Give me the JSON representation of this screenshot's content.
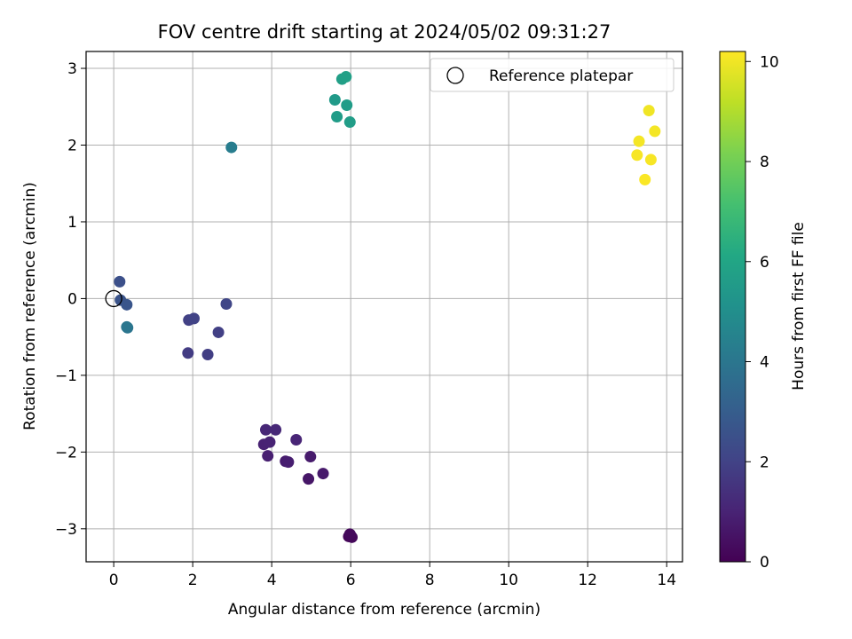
{
  "chart_data": {
    "type": "scatter",
    "title": "FOV centre drift starting at 2024/05/02 09:31:27",
    "xlabel": "Angular distance from reference (arcmin)",
    "ylabel": "Rotation from reference (arcmin)",
    "xlim": [
      -0.7,
      14.4
    ],
    "ylim": [
      -3.43,
      3.22
    ],
    "xticks": [
      0,
      2,
      4,
      6,
      8,
      10,
      12,
      14
    ],
    "yticks": [
      -3,
      -2,
      -1,
      0,
      1,
      2,
      3
    ],
    "xtick_labels": [
      "0",
      "2",
      "4",
      "6",
      "8",
      "10",
      "12",
      "14"
    ],
    "ytick_labels": [
      "−3",
      "−2",
      "−1",
      "0",
      "1",
      "2",
      "3"
    ],
    "grid": true,
    "colormap": "viridis",
    "colorbar": {
      "label": "Hours from first FF file",
      "range": [
        0,
        10.2
      ],
      "ticks": [
        0,
        2,
        4,
        6,
        8,
        10
      ],
      "tick_labels": [
        "0",
        "2",
        "4",
        "6",
        "8",
        "10"
      ]
    },
    "legend": {
      "position": "top-right",
      "entries": [
        {
          "label": "Reference platepar",
          "marker": "open-circle"
        }
      ]
    },
    "reference_point": {
      "x": 0,
      "y": 0
    },
    "points": [
      {
        "x": 6.0,
        "y": -3.09,
        "hours": 0.1
      },
      {
        "x": 5.95,
        "y": -3.1,
        "hours": 0.15
      },
      {
        "x": 6.03,
        "y": -3.11,
        "hours": 0.2
      },
      {
        "x": 5.98,
        "y": -3.07,
        "hours": 0.25
      },
      {
        "x": 4.93,
        "y": -2.35,
        "hours": 0.6
      },
      {
        "x": 5.3,
        "y": -2.28,
        "hours": 0.7
      },
      {
        "x": 4.98,
        "y": -2.06,
        "hours": 0.75
      },
      {
        "x": 4.35,
        "y": -2.12,
        "hours": 0.8
      },
      {
        "x": 4.42,
        "y": -2.13,
        "hours": 0.85
      },
      {
        "x": 3.9,
        "y": -2.05,
        "hours": 0.9
      },
      {
        "x": 3.8,
        "y": -1.9,
        "hours": 0.95
      },
      {
        "x": 3.95,
        "y": -1.87,
        "hours": 1.0
      },
      {
        "x": 4.62,
        "y": -1.84,
        "hours": 1.05
      },
      {
        "x": 3.85,
        "y": -1.71,
        "hours": 1.1
      },
      {
        "x": 4.1,
        "y": -1.71,
        "hours": 1.15
      },
      {
        "x": 1.88,
        "y": -0.71,
        "hours": 1.8
      },
      {
        "x": 2.38,
        "y": -0.73,
        "hours": 1.85
      },
      {
        "x": 2.65,
        "y": -0.44,
        "hours": 1.9
      },
      {
        "x": 1.9,
        "y": -0.28,
        "hours": 1.95
      },
      {
        "x": 2.03,
        "y": -0.26,
        "hours": 2.0
      },
      {
        "x": 2.85,
        "y": -0.07,
        "hours": 2.1
      },
      {
        "x": 0.15,
        "y": 0.22,
        "hours": 2.5
      },
      {
        "x": 0.17,
        "y": -0.02,
        "hours": 2.6
      },
      {
        "x": 0.33,
        "y": -0.08,
        "hours": 2.7
      },
      {
        "x": 0.35,
        "y": -0.38,
        "hours": 3.9
      },
      {
        "x": 0.33,
        "y": -0.37,
        "hours": 4.0
      },
      {
        "x": 2.98,
        "y": 1.97,
        "hours": 4.3
      },
      {
        "x": 5.6,
        "y": 2.59,
        "hours": 5.5
      },
      {
        "x": 5.65,
        "y": 2.37,
        "hours": 5.6
      },
      {
        "x": 5.9,
        "y": 2.52,
        "hours": 5.6
      },
      {
        "x": 5.98,
        "y": 2.3,
        "hours": 5.65
      },
      {
        "x": 5.78,
        "y": 2.86,
        "hours": 5.7
      },
      {
        "x": 5.88,
        "y": 2.89,
        "hours": 5.75
      },
      {
        "x": 13.55,
        "y": 2.45,
        "hours": 10.0
      },
      {
        "x": 13.7,
        "y": 2.18,
        "hours": 10.05
      },
      {
        "x": 13.3,
        "y": 2.05,
        "hours": 10.05
      },
      {
        "x": 13.25,
        "y": 1.87,
        "hours": 10.1
      },
      {
        "x": 13.6,
        "y": 1.81,
        "hours": 10.1
      },
      {
        "x": 13.45,
        "y": 1.55,
        "hours": 10.15
      }
    ]
  }
}
